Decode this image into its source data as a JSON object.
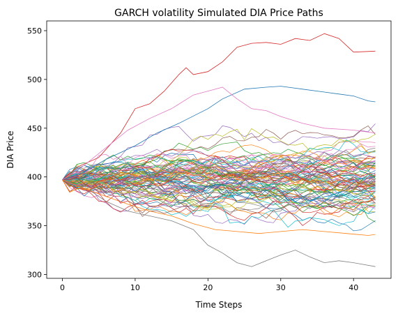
{
  "chart_data": {
    "type": "line",
    "title": "GARCH volatility Simulated DIA Price Paths",
    "xlabel": "Time Steps",
    "ylabel": "DIA Price",
    "xlim": [
      -2.15,
      45.15
    ],
    "ylim": [
      296,
      560
    ],
    "xticks": [
      0,
      10,
      20,
      30,
      40
    ],
    "yticks": [
      300,
      350,
      400,
      450,
      500,
      550
    ],
    "grid": false,
    "legend": "none",
    "start_value": 397,
    "steps": 43,
    "num_paths": 100,
    "palette": [
      "#1f77b4",
      "#ff7f0e",
      "#2ca02c",
      "#d62728",
      "#9467bd",
      "#8c564b",
      "#e377c2",
      "#7f7f7f",
      "#bcbd22",
      "#17becf"
    ],
    "highlighted_paths": [
      {
        "color": "#d62728",
        "points": [
          [
            0,
            397
          ],
          [
            2,
            410
          ],
          [
            5,
            420
          ],
          [
            8,
            445
          ],
          [
            10,
            470
          ],
          [
            12,
            475
          ],
          [
            14,
            488
          ],
          [
            16,
            505
          ],
          [
            17,
            512
          ],
          [
            18,
            505
          ],
          [
            20,
            508
          ],
          [
            22,
            518
          ],
          [
            24,
            533
          ],
          [
            26,
            537
          ],
          [
            28,
            538
          ],
          [
            30,
            536
          ],
          [
            32,
            542
          ],
          [
            34,
            540
          ],
          [
            36,
            547
          ],
          [
            38,
            542
          ],
          [
            40,
            528
          ],
          [
            43,
            529
          ]
        ]
      },
      {
        "color": "#1f77b4",
        "points": [
          [
            0,
            397
          ],
          [
            3,
            405
          ],
          [
            6,
            418
          ],
          [
            10,
            432
          ],
          [
            13,
            445
          ],
          [
            16,
            455
          ],
          [
            20,
            470
          ],
          [
            22,
            480
          ],
          [
            25,
            490
          ],
          [
            28,
            492
          ],
          [
            30,
            493
          ],
          [
            33,
            490
          ],
          [
            36,
            487
          ],
          [
            38,
            485
          ],
          [
            40,
            483
          ],
          [
            42,
            478
          ],
          [
            43,
            477
          ]
        ]
      },
      {
        "color": "#e377c2",
        "points": [
          [
            0,
            397
          ],
          [
            3,
            412
          ],
          [
            6,
            430
          ],
          [
            9,
            448
          ],
          [
            12,
            460
          ],
          [
            15,
            470
          ],
          [
            18,
            484
          ],
          [
            20,
            488
          ],
          [
            22,
            492
          ],
          [
            24,
            480
          ],
          [
            26,
            470
          ],
          [
            28,
            468
          ],
          [
            30,
            462
          ],
          [
            33,
            455
          ],
          [
            36,
            450
          ],
          [
            40,
            448
          ],
          [
            43,
            445
          ]
        ]
      },
      {
        "color": "#7f7f7f",
        "points": [
          [
            0,
            397
          ],
          [
            2,
            392
          ],
          [
            4,
            385
          ],
          [
            6,
            375
          ],
          [
            9,
            365
          ],
          [
            12,
            360
          ],
          [
            15,
            355
          ],
          [
            18,
            346
          ],
          [
            20,
            330
          ],
          [
            22,
            322
          ],
          [
            24,
            312
          ],
          [
            26,
            308
          ],
          [
            28,
            314
          ],
          [
            30,
            320
          ],
          [
            32,
            325
          ],
          [
            34,
            318
          ],
          [
            36,
            312
          ],
          [
            38,
            314
          ],
          [
            40,
            312
          ],
          [
            43,
            308
          ]
        ]
      },
      {
        "color": "#ff7f0e",
        "points": [
          [
            0,
            397
          ],
          [
            3,
            388
          ],
          [
            6,
            380
          ],
          [
            9,
            372
          ],
          [
            12,
            365
          ],
          [
            15,
            360
          ],
          [
            18,
            352
          ],
          [
            21,
            346
          ],
          [
            24,
            344
          ],
          [
            27,
            342
          ],
          [
            30,
            344
          ],
          [
            33,
            346
          ],
          [
            36,
            344
          ],
          [
            39,
            342
          ],
          [
            42,
            340
          ],
          [
            43,
            341
          ]
        ]
      }
    ]
  }
}
